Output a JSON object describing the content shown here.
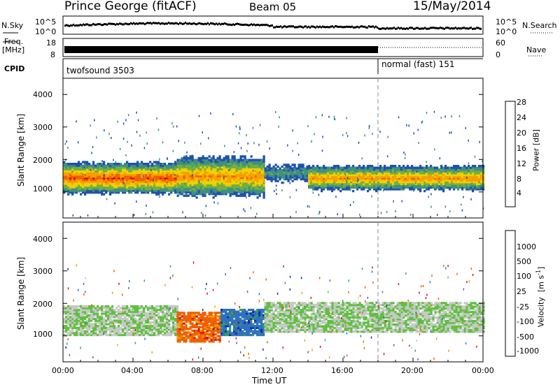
{
  "header": {
    "station": "Prince George (fitACF)",
    "beam": "Beam 05",
    "date": "15/May/2014"
  },
  "panels": {
    "nsky_label": "N.Sky",
    "nsearch_label": "N.Search",
    "freq_label_top": "Freq.",
    "freq_label_bottom": "[MHz]",
    "nave_label": "Nave",
    "cpid_label": "CPID",
    "counts_ticks": [
      "10^5",
      "10^0"
    ],
    "freq_ticks": [
      "18",
      "8"
    ],
    "nave_ticks": [
      "60",
      "0"
    ],
    "cpid_segments": [
      {
        "label": "twofsound 3503",
        "start_hour": 0,
        "end_hour": 18
      },
      {
        "label": "normal (fast) 151",
        "start_hour": 18,
        "end_hour": 24
      }
    ]
  },
  "chart_data": [
    {
      "type": "heatmap",
      "quantity": "Power",
      "xlabel": "",
      "ylabel": "Slant Range [km]",
      "xlim": [
        0,
        24
      ],
      "ylim": [
        200,
        4500
      ],
      "yticks": [
        "1000",
        "2000",
        "3000",
        "4000"
      ],
      "colorbar": {
        "label": "Power [dB]",
        "ticks": [
          "28",
          "24",
          "20",
          "16",
          "12",
          "8",
          "4"
        ],
        "colors": [
          "#e00000",
          "#f06000",
          "#f5a000",
          "#f0d000",
          "#70b040",
          "#409080",
          "#2050b0",
          "#1010e0"
        ]
      },
      "echo_bands": [
        {
          "start_hour": 0,
          "end_hour": 6.5,
          "range_min": 900,
          "range_max": 1900,
          "peak_power_db": 28
        },
        {
          "start_hour": 6.5,
          "end_hour": 11.5,
          "range_min": 800,
          "range_max": 2100,
          "peak_power_db": 24
        },
        {
          "start_hour": 11.5,
          "end_hour": 14,
          "range_min": 1200,
          "range_max": 1900,
          "peak_power_db": 12
        },
        {
          "start_hour": 14,
          "end_hour": 24,
          "range_min": 1000,
          "range_max": 1800,
          "peak_power_db": 24
        }
      ]
    },
    {
      "type": "heatmap",
      "quantity": "Velocity",
      "xlabel": "Time UT",
      "ylabel": "Slant Range [km]",
      "xlim": [
        0,
        24
      ],
      "ylim": [
        200,
        4500
      ],
      "xticks": [
        "00:00",
        "04:00",
        "08:00",
        "12:00",
        "16:00",
        "20:00",
        "00:00"
      ],
      "yticks": [
        "1000",
        "2000",
        "3000",
        "4000"
      ],
      "colorbar": {
        "label_main": "Velocity",
        "label_units": "[m s",
        "label_exp": "-1",
        "label_close": "]",
        "ticks": [
          "1000",
          "500",
          "100",
          "25",
          "-25",
          "-100",
          "-500",
          "-1000"
        ],
        "colors": [
          "#1030a0",
          "#3070c0",
          "#30a060",
          "#60c040",
          "#c8c8c8",
          "#f0a000",
          "#f06000",
          "#e01010"
        ]
      },
      "echo_bands": [
        {
          "start_hour": 0,
          "end_hour": 6.5,
          "range_min": 1000,
          "range_max": 1900,
          "velocity_ms": 0
        },
        {
          "start_hour": 6.5,
          "end_hour": 9,
          "range_min": 800,
          "range_max": 1700,
          "velocity_ms": -500
        },
        {
          "start_hour": 9,
          "end_hour": 11.5,
          "range_min": 1000,
          "range_max": 1800,
          "velocity_ms": 500
        },
        {
          "start_hour": 11.5,
          "end_hour": 24,
          "range_min": 1100,
          "range_max": 2000,
          "velocity_ms": 0
        }
      ]
    }
  ]
}
